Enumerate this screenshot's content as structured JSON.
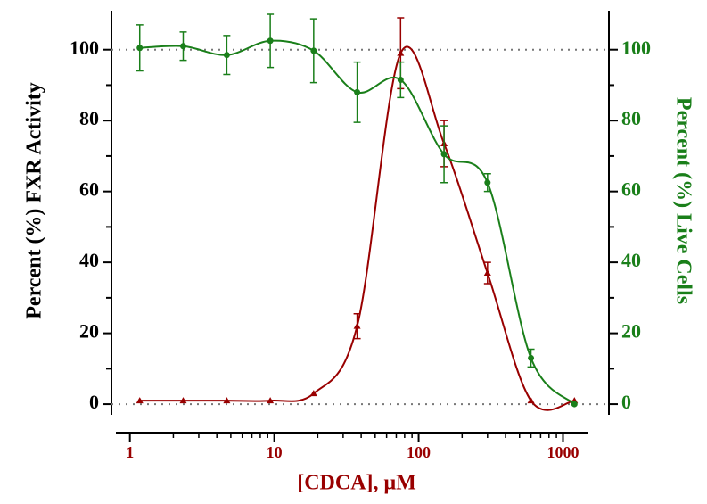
{
  "chart_data": {
    "type": "line",
    "xlabel": "[CDCA], μM",
    "ylabel": "Percent (%) FXR Activity",
    "y2label": "Percent (%) Live Cells",
    "x": [
      1.17,
      2.34,
      4.69,
      9.38,
      18.75,
      37.5,
      75,
      150,
      300,
      600,
      1200
    ],
    "series": [
      {
        "name": "Percent (%) FXR Activity",
        "color": "#990000",
        "marker": "triangle",
        "values": [
          1,
          1,
          1,
          1,
          3,
          22,
          99,
          73.5,
          37,
          1,
          1
        ],
        "errors": [
          0,
          0,
          0,
          0,
          0,
          3.5,
          10,
          6.5,
          3,
          0,
          0
        ]
      },
      {
        "name": "Percent (%) Live Cells",
        "color": "#1a7f1a",
        "marker": "circle",
        "axis": "y2",
        "values": [
          100.5,
          101,
          98.5,
          102.5,
          99.7,
          88,
          91.5,
          70.5,
          62.5,
          13,
          0
        ],
        "errors": [
          6.5,
          4,
          5.5,
          7.5,
          9,
          8.5,
          5,
          8,
          2.5,
          2.5,
          0
        ]
      }
    ],
    "xscale": "log",
    "xlim": [
      0.8,
      1500
    ],
    "xticks": [
      1,
      10,
      100,
      1000
    ],
    "xminorticks": [
      2,
      3,
      4,
      5,
      6,
      7,
      8,
      9,
      20,
      30,
      40,
      50,
      60,
      70,
      80,
      90,
      200,
      300,
      400,
      500,
      600,
      700,
      800,
      900
    ],
    "ylim": [
      -3,
      111
    ],
    "yticks": [
      0,
      20,
      40,
      60,
      80,
      100
    ],
    "yminorticks": [
      10,
      30,
      50,
      70,
      90
    ],
    "y2lim": [
      -3,
      111
    ],
    "y2ticks": [
      0,
      20,
      40,
      60,
      80,
      100
    ],
    "reference_lines": [
      0,
      100
    ]
  }
}
